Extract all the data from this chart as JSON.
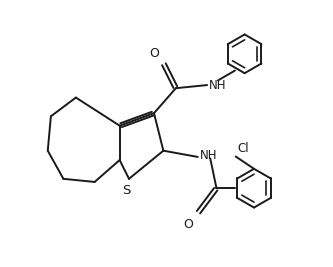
{
  "background_color": "#ffffff",
  "line_color": "#1a1a1a",
  "line_width": 1.4,
  "figsize": [
    3.33,
    2.67
  ],
  "dpi": 100,
  "xlim": [
    0,
    10
  ],
  "ylim": [
    0,
    8.5
  ]
}
